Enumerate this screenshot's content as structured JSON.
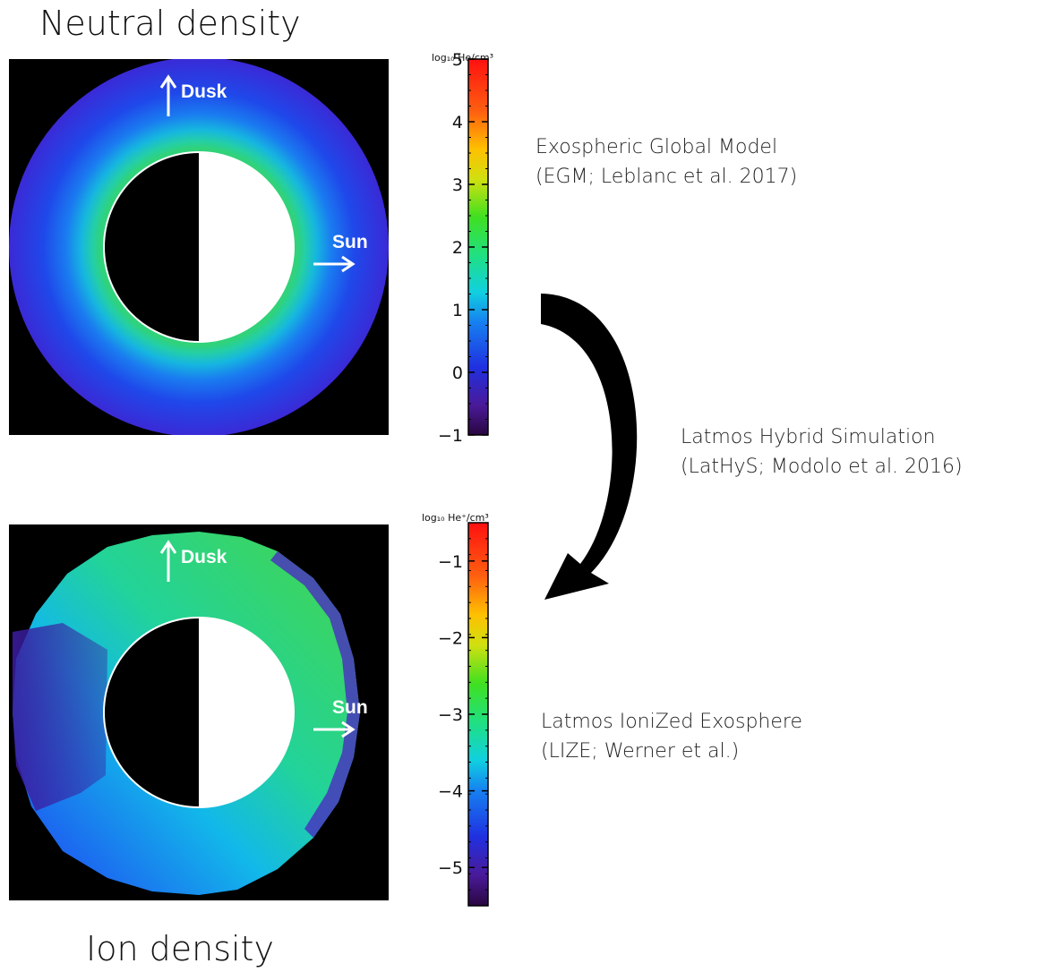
{
  "neutral_title": "Neutral density",
  "ion_title": "Ion density",
  "neutral_map": {
    "dusk_label": "Dusk",
    "sun_label": "Sun"
  },
  "ion_map": {
    "dusk_label": "Dusk",
    "sun_label": "Sun"
  },
  "neutral_colorbar": {
    "unit_label": "log₁₀ He/cm³",
    "range": [
      -1,
      5
    ],
    "ticks": [
      {
        "v": -1,
        "t": "−1"
      },
      {
        "v": 0,
        "t": "0"
      },
      {
        "v": 1,
        "t": "1"
      },
      {
        "v": 2,
        "t": "2"
      },
      {
        "v": 3,
        "t": "3"
      },
      {
        "v": 4,
        "t": "4"
      },
      {
        "v": 5,
        "t": "5"
      }
    ]
  },
  "ion_colorbar": {
    "unit_label": "log₁₀ He⁺/cm³",
    "range": [
      -5.5,
      -0.5
    ],
    "ticks": [
      {
        "v": -5,
        "t": "−5"
      },
      {
        "v": -4,
        "t": "−4"
      },
      {
        "v": -3,
        "t": "−3"
      },
      {
        "v": -2,
        "t": "−2"
      },
      {
        "v": -1,
        "t": "−1"
      }
    ]
  },
  "models": {
    "egm": {
      "line1": "Exospheric Global Model",
      "line2": "(EGM; Leblanc et al. 2017)"
    },
    "lathys": {
      "line1": "Latmos Hybrid Simulation",
      "line2": "(LatHyS; Modolo et al. 2016)"
    },
    "lize": {
      "line1": "Latmos IoniZed Exosphere",
      "line2": "(LIZE; Werner et al.)"
    }
  }
}
